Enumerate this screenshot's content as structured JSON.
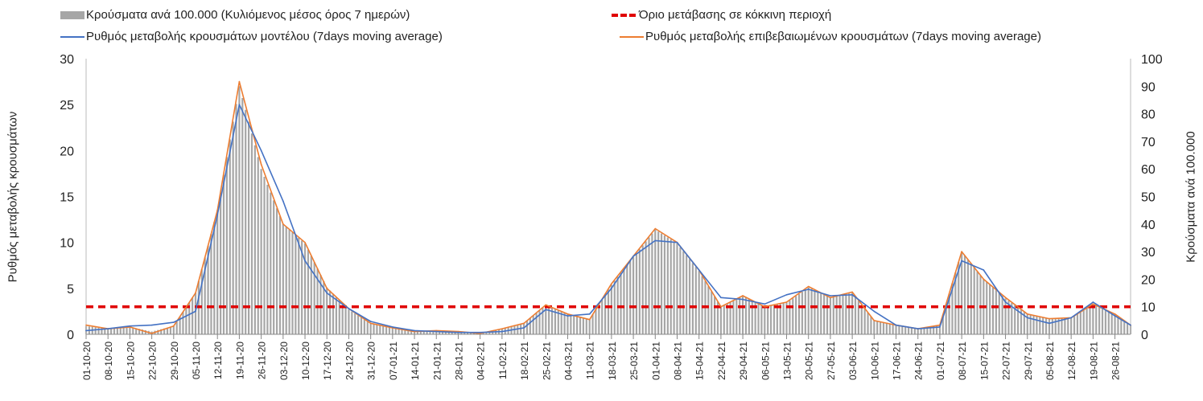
{
  "chart_data": {
    "type": "bar+line",
    "legend": {
      "bars": "Κρούσματα ανά 100.000 (Κυλιόμενος μέσος όρος 7 ημερών)",
      "threshold": "Όριο μετάβασης σε κόκκινη περιοχή",
      "model": "Ρυθμός μεταβολής κρουσμάτων μοντέλου (7days moving average)",
      "confirmed": "Ρυθμός μεταβολής επιβεβαιωμένων κρουσμάτων (7days moving average)"
    },
    "ylabel_left": "Ρυθμός μεταβολής κρουσμάτων",
    "ylabel_right": "Κρούσματα ανά 100.000",
    "ylim_left": [
      0,
      30
    ],
    "ylim_right": [
      0,
      100
    ],
    "yticks_left": [
      "0",
      "5",
      "10",
      "15",
      "20",
      "25",
      "30"
    ],
    "yticks_right": [
      "0",
      "10",
      "20",
      "30",
      "40",
      "50",
      "60",
      "70",
      "80",
      "90",
      "100"
    ],
    "threshold_left": 3,
    "x_tick_labels": [
      "01-10-20",
      "08-10-20",
      "15-10-20",
      "22-10-20",
      "29-10-20",
      "05-11-20",
      "12-11-20",
      "19-11-20",
      "26-11-20",
      "03-12-20",
      "10-12-20",
      "17-12-20",
      "24-12-20",
      "31-12-20",
      "07-01-21",
      "14-01-21",
      "21-01-21",
      "28-01-21",
      "04-02-21",
      "11-02-21",
      "18-02-21",
      "25-02-21",
      "04-03-21",
      "11-03-21",
      "18-03-21",
      "25-03-21",
      "01-04-21",
      "08-04-21",
      "15-04-21",
      "22-04-21",
      "29-04-21",
      "06-05-21",
      "13-05-21",
      "20-05-21",
      "27-05-21",
      "03-06-21",
      "10-06-21",
      "17-06-21",
      "24-06-21",
      "01-07-21",
      "08-07-21",
      "15-07-21",
      "22-07-21",
      "29-07-21",
      "05-08-21",
      "12-08-21",
      "19-08-21",
      "26-08-21"
    ],
    "x_day_offsets": [
      0,
      7,
      14,
      21,
      28,
      35,
      42,
      49,
      56,
      63,
      70,
      77,
      84,
      91,
      98,
      105,
      112,
      119,
      126,
      133,
      140,
      147,
      154,
      161,
      168,
      175,
      182,
      189,
      196,
      203,
      210,
      217,
      224,
      231,
      238,
      245,
      252,
      259,
      266,
      273,
      280,
      287,
      294,
      301,
      308,
      315,
      322,
      329,
      334
    ],
    "series": [
      {
        "name": "model",
        "axis": "left",
        "color": "#4472c4",
        "values": [
          0.4,
          0.6,
          0.9,
          1.0,
          1.3,
          2.5,
          13,
          25,
          20,
          14.5,
          8,
          4.5,
          2.8,
          1.4,
          0.8,
          0.4,
          0.3,
          0.2,
          0.2,
          0.3,
          0.7,
          2.7,
          2.0,
          2.2,
          5,
          8.5,
          10.2,
          10,
          7,
          4,
          3.8,
          3.3,
          4.3,
          4.9,
          4.2,
          4.3,
          2.5,
          1.0,
          0.6,
          0.8,
          8,
          7,
          3.5,
          1.8,
          1.2,
          1.8,
          3.5,
          2.0,
          1.0
        ]
      },
      {
        "name": "confirmed",
        "axis": "left",
        "color": "#ed7d31",
        "values": [
          1.0,
          0.6,
          0.8,
          0.1,
          0.9,
          4.5,
          13.5,
          27.5,
          18.5,
          12,
          10,
          5,
          2.8,
          1.2,
          0.7,
          0.3,
          0.4,
          0.3,
          0.1,
          0.6,
          1.2,
          3.2,
          2.2,
          1.6,
          5.5,
          8.5,
          11.5,
          10,
          7,
          3,
          4.2,
          3,
          3.5,
          5.2,
          4.0,
          4.6,
          1.5,
          1.0,
          0.6,
          1.0,
          9,
          6,
          4,
          2.2,
          1.7,
          1.8,
          3.3,
          2.2,
          1.0
        ]
      },
      {
        "name": "cases_per_100k",
        "axis": "right",
        "color": "#a6a6a6",
        "values": [
          3,
          2,
          2.7,
          1,
          3,
          15,
          45,
          90,
          60,
          40,
          33,
          17,
          9,
          4,
          2.3,
          1,
          1.3,
          1,
          0.4,
          2,
          4,
          10.5,
          7.3,
          5.5,
          18,
          28,
          38,
          33,
          23,
          10,
          14,
          10,
          11.5,
          17,
          13.5,
          15,
          5,
          3.3,
          2,
          3.3,
          30,
          20,
          13,
          7.3,
          5.7,
          6,
          11,
          7.3,
          3.3
        ]
      },
      {
        "name": "threshold",
        "axis": "left",
        "color": "#e00000",
        "values": [
          3
        ]
      }
    ]
  }
}
